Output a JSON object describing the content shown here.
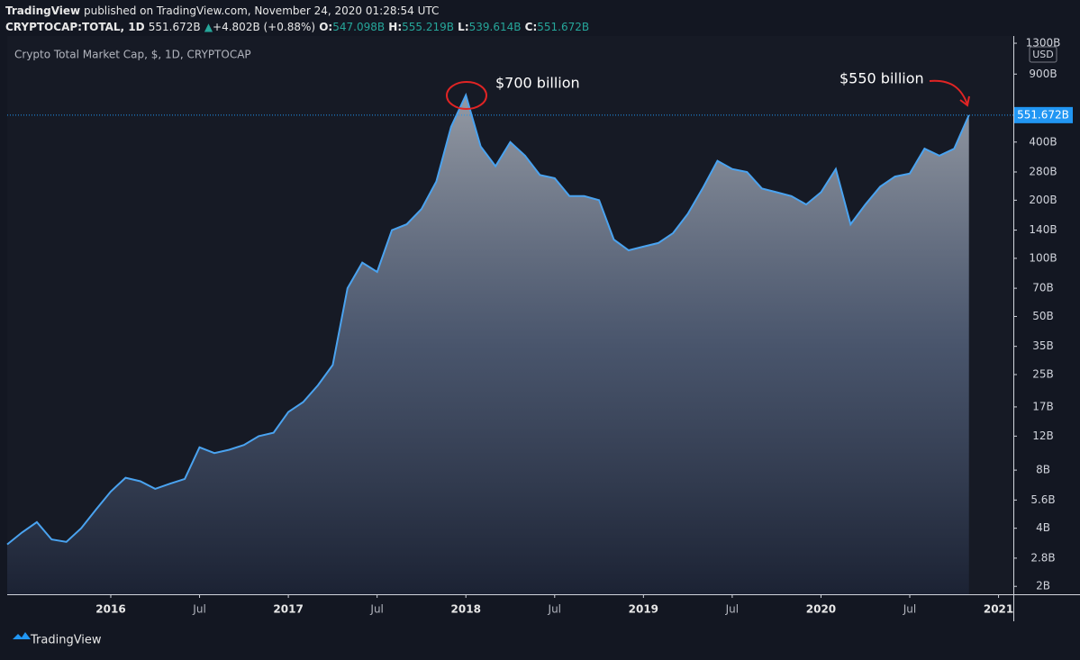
{
  "header": {
    "publisher": "TradingView",
    "published": "published on TradingView.com, November 24, 2020 01:28:54 UTC",
    "symbol": "CRYPTOCAP:TOTAL, 1D",
    "last": "551.672B",
    "change": "+4.802B (+0.88%)",
    "ohlc": [
      {
        "label": "O:",
        "value": "547.098B"
      },
      {
        "label": "H:",
        "value": "555.219B"
      },
      {
        "label": "L:",
        "value": "539.614B"
      },
      {
        "label": "C:",
        "value": "551.672B"
      }
    ]
  },
  "footer": "TradingView",
  "chart_data": {
    "type": "area",
    "title": "Crypto Total Market Cap, $, 1D, CRYPTOCAP",
    "currency": "USD",
    "log_scale": true,
    "grid": false,
    "color": "#4aa3f0",
    "annotations": [
      "$700 billion",
      "$550 billion"
    ],
    "x": [
      "2015-06",
      "2015-07",
      "2015-08",
      "2015-09",
      "2015-10",
      "2015-11",
      "2015-12",
      "2016-01",
      "2016-02",
      "2016-03",
      "2016-04",
      "2016-05",
      "2016-06",
      "2016-07",
      "2016-08",
      "2016-09",
      "2016-10",
      "2016-11",
      "2016-12",
      "2017-01",
      "2017-02",
      "2017-03",
      "2017-04",
      "2017-05",
      "2017-06",
      "2017-07",
      "2017-08",
      "2017-09",
      "2017-10",
      "2017-11",
      "2017-12",
      "2018-01",
      "2018-02",
      "2018-03",
      "2018-04",
      "2018-05",
      "2018-06",
      "2018-07",
      "2018-08",
      "2018-09",
      "2018-10",
      "2018-11",
      "2018-12",
      "2019-01",
      "2019-02",
      "2019-03",
      "2019-04",
      "2019-05",
      "2019-06",
      "2019-07",
      "2019-08",
      "2019-09",
      "2019-10",
      "2019-11",
      "2019-12",
      "2020-01",
      "2020-02",
      "2020-03",
      "2020-04",
      "2020-05",
      "2020-06",
      "2020-07",
      "2020-08",
      "2020-09",
      "2020-10",
      "2020-11"
    ],
    "values": [
      3.3,
      3.8,
      4.3,
      3.5,
      3.4,
      4.0,
      5.0,
      6.2,
      7.3,
      7.0,
      6.4,
      6.8,
      7.2,
      10.5,
      9.8,
      10.2,
      10.8,
      12,
      12.5,
      16,
      18,
      22,
      28,
      70,
      95,
      85,
      140,
      150,
      180,
      250,
      480,
      700,
      380,
      300,
      400,
      340,
      270,
      260,
      210,
      210,
      200,
      125,
      110,
      115,
      120,
      135,
      170,
      230,
      320,
      290,
      280,
      230,
      220,
      210,
      190,
      220,
      290,
      150,
      190,
      235,
      265,
      275,
      370,
      340,
      370,
      551.672
    ],
    "value_labels": [
      null,
      null,
      null,
      null,
      null,
      null,
      null,
      null,
      null,
      null,
      null,
      null,
      null,
      null,
      null,
      null,
      null,
      null,
      null,
      null,
      null,
      null,
      null,
      null,
      null,
      null,
      null,
      null,
      null,
      null,
      null,
      null,
      null,
      null,
      null,
      null,
      null,
      null,
      null,
      null,
      null,
      null,
      null,
      null,
      null,
      null,
      null,
      null,
      null,
      null,
      null,
      null,
      null,
      null,
      null,
      null,
      null,
      null,
      null,
      null,
      null,
      null,
      null,
      null,
      null,
      "551.672B"
    ],
    "xlim": [
      "2015-06",
      "2021-02"
    ],
    "xticks": [
      {
        "value": "2016-01",
        "label": "2016"
      },
      {
        "value": "2016-07",
        "label": "Jul"
      },
      {
        "value": "2017-01",
        "label": "2017"
      },
      {
        "value": "2017-07",
        "label": "Jul"
      },
      {
        "value": "2018-01",
        "label": "2018"
      },
      {
        "value": "2018-07",
        "label": "Jul"
      },
      {
        "value": "2019-01",
        "label": "2019"
      },
      {
        "value": "2019-07",
        "label": "Jul"
      },
      {
        "value": "2020-01",
        "label": "2020"
      },
      {
        "value": "2020-07",
        "label": "Jul"
      },
      {
        "value": "2021-01",
        "label": "2021"
      }
    ],
    "ylim": [
      1.82,
      1417
    ],
    "yticks": [
      {
        "value": 1300,
        "label": "1300B"
      },
      {
        "value": 900,
        "label": "900B"
      },
      {
        "value": 400,
        "label": "400B"
      },
      {
        "value": 280,
        "label": "280B"
      },
      {
        "value": 200,
        "label": "200B"
      },
      {
        "value": 140,
        "label": "140B"
      },
      {
        "value": 100,
        "label": "100B"
      },
      {
        "value": 70,
        "label": "70B"
      },
      {
        "value": 50,
        "label": "50B"
      },
      {
        "value": 35,
        "label": "35B"
      },
      {
        "value": 25,
        "label": "25B"
      },
      {
        "value": 17,
        "label": "17B"
      },
      {
        "value": 12,
        "label": "12B"
      },
      {
        "value": 8,
        "label": "8B"
      },
      {
        "value": 5.6,
        "label": "5.6B"
      },
      {
        "value": 4,
        "label": "4B"
      },
      {
        "value": 2.8,
        "label": "2.8B"
      },
      {
        "value": 2,
        "label": "2B"
      }
    ]
  }
}
